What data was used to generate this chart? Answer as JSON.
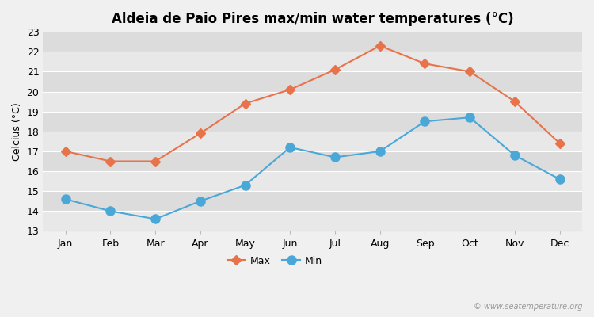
{
  "months": [
    "Jan",
    "Feb",
    "Mar",
    "Apr",
    "May",
    "Jun",
    "Jul",
    "Aug",
    "Sep",
    "Oct",
    "Nov",
    "Dec"
  ],
  "max_temps": [
    17.0,
    16.5,
    16.5,
    17.9,
    19.4,
    20.1,
    21.1,
    22.3,
    21.4,
    21.0,
    19.5,
    17.4
  ],
  "min_temps": [
    14.6,
    14.0,
    13.6,
    14.5,
    15.3,
    17.2,
    16.7,
    17.0,
    18.5,
    18.7,
    16.8,
    15.6
  ],
  "max_color": "#e8734a",
  "min_color": "#4aa8d8",
  "title": "Aldeia de Paio Pires max/min water temperatures (°C)",
  "ylabel": "Celcius (°C)",
  "ylim": [
    13,
    23
  ],
  "yticks": [
    13,
    14,
    15,
    16,
    17,
    18,
    19,
    20,
    21,
    22,
    23
  ],
  "bg_color": "#f0f0f0",
  "plot_bg_color": "#e8e8e8",
  "band_light": "#e8e8e8",
  "band_dark": "#dcdcdc",
  "grid_color": "#ffffff",
  "marker_max": "D",
  "marker_min": "o",
  "marker_size_max": 6,
  "marker_size_min": 8,
  "line_width": 1.5,
  "watermark": "© www.seatemperature.org",
  "legend_labels": [
    "Max",
    "Min"
  ],
  "title_fontsize": 12,
  "axis_fontsize": 9,
  "ylabel_fontsize": 9
}
